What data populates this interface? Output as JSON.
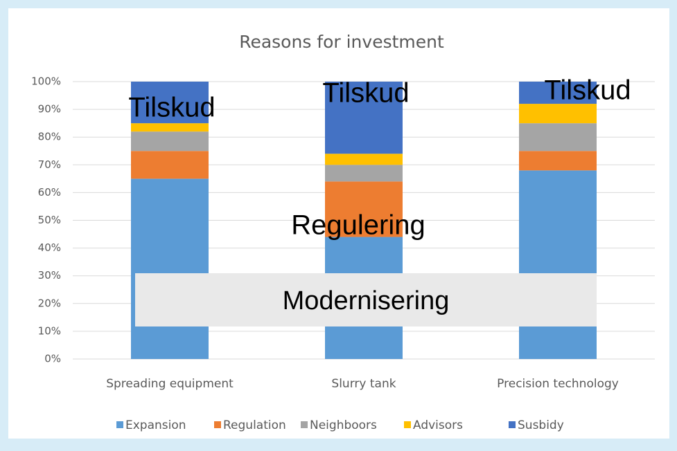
{
  "chart_data": {
    "type": "stacked_bar",
    "title": "Reasons for investment",
    "categories": [
      "Spreading equipment",
      "Slurry tank",
      "Precision technology"
    ],
    "series": [
      {
        "name": "Expansion",
        "color": "#5b9bd5",
        "values": [
          65,
          44,
          68
        ]
      },
      {
        "name": "Regulation",
        "color": "#ed7d31",
        "values": [
          10,
          20,
          7
        ]
      },
      {
        "name": "Neighboors",
        "color": "#a5a5a5",
        "values": [
          7,
          6,
          10
        ]
      },
      {
        "name": "Advisors",
        "color": "#ffc000",
        "values": [
          3,
          4,
          7
        ]
      },
      {
        "name": "Susbidy",
        "color": "#4472c4",
        "values": [
          15,
          26,
          8
        ]
      }
    ],
    "ylim": [
      0,
      100
    ],
    "yticks": [
      {
        "value": 0,
        "label": "0%"
      },
      {
        "value": 10,
        "label": "10%"
      },
      {
        "value": 20,
        "label": "20%"
      },
      {
        "value": 30,
        "label": "30%"
      },
      {
        "value": 40,
        "label": "40%"
      },
      {
        "value": 50,
        "label": "50%"
      },
      {
        "value": 60,
        "label": "60%"
      },
      {
        "value": 70,
        "label": "70%"
      },
      {
        "value": 80,
        "label": "80%"
      },
      {
        "value": 90,
        "label": "90%"
      },
      {
        "value": 100,
        "label": "100%"
      }
    ],
    "grid": true,
    "legend": "bottom",
    "annotations": [
      "Tilskud",
      "Tilskud",
      "Tilskud",
      "Regulering",
      "Modernisering"
    ]
  }
}
